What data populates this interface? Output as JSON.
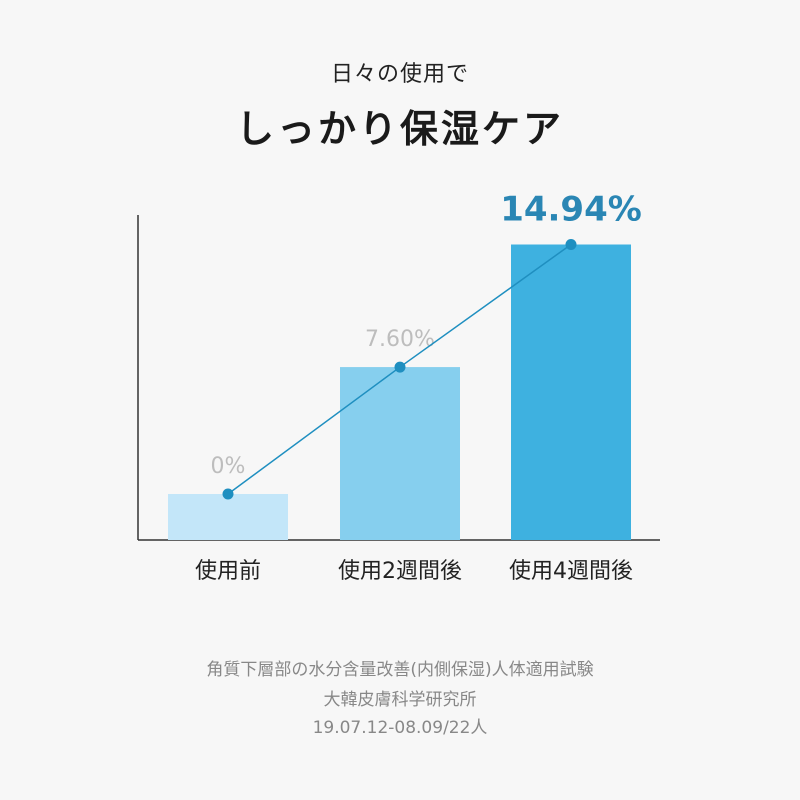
{
  "header": {
    "subtitle": "日々の使用で",
    "title": "しっかり保湿ケア"
  },
  "chart_data": {
    "type": "bar",
    "categories": [
      "使用前",
      "使用2週間後",
      "使用4週間後"
    ],
    "values": [
      0,
      7.6,
      14.94
    ],
    "data_labels": [
      "0%",
      "7.60%",
      "14.94%"
    ],
    "unit": "%",
    "bar_colors": [
      "#c3e6f9",
      "#86cfee",
      "#3eb1e0"
    ],
    "label_colors": [
      "#bdbdbd",
      "#bdbdbd",
      "#2a86b4"
    ],
    "line_color": "#1f8fc0",
    "trend_line": true,
    "grid": false,
    "legend": "none"
  },
  "footnotes": [
    "角質下層部の水分含量改善(内側保湿)人体適用試験",
    "大韓皮膚科学研究所",
    "19.07.12-08.09/22人"
  ]
}
